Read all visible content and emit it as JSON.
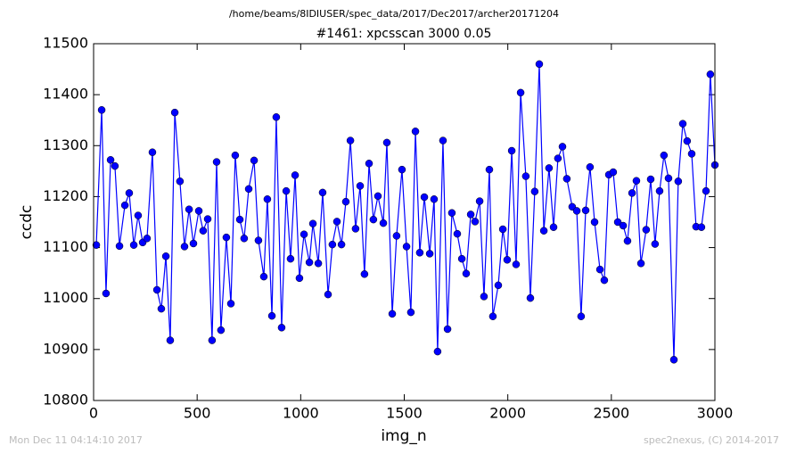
{
  "chart_data": {
    "type": "line",
    "suptitle": "/home/beams/8IDIUSER/spec_data/2017/Dec2017/archer20171204",
    "title": "#1461: xpcsscan 3000 0.05",
    "xlabel": "img_n",
    "ylabel": "ccdc",
    "footer_left": "Mon Dec 11 04:14:10 2017",
    "footer_right": "spec2nexus, (C) 2014-2017",
    "xlim": [
      0,
      3000
    ],
    "xticks": [
      0,
      500,
      1000,
      1500,
      2000,
      2500,
      3000
    ],
    "ylim": [
      10800,
      11500
    ],
    "yticks": [
      10800,
      10900,
      11000,
      11100,
      11200,
      11300,
      11400,
      11500
    ],
    "x": [
      13,
      39,
      60,
      82,
      103,
      125,
      151,
      172,
      194,
      215,
      237,
      258,
      284,
      306,
      327,
      349,
      370,
      392,
      417,
      439,
      461,
      482,
      508,
      529,
      551,
      572,
      594,
      615,
      641,
      663,
      684,
      706,
      727,
      749,
      775,
      796,
      822,
      839,
      861,
      882,
      908,
      930,
      951,
      973,
      994,
      1016,
      1042,
      1059,
      1085,
      1106,
      1132,
      1153,
      1175,
      1197,
      1218,
      1240,
      1265,
      1287,
      1308,
      1330,
      1351,
      1373,
      1399,
      1416,
      1442,
      1463,
      1489,
      1511,
      1532,
      1554,
      1575,
      1597,
      1623,
      1644,
      1661,
      1687,
      1709,
      1730,
      1756,
      1778,
      1799,
      1821,
      1842,
      1864,
      1885,
      1911,
      1928,
      1954,
      1976,
      1997,
      2019,
      2040,
      2062,
      2087,
      2109,
      2130,
      2152,
      2174,
      2199,
      2221,
      2242,
      2264,
      2285,
      2311,
      2333,
      2354,
      2376,
      2397,
      2419,
      2445,
      2466,
      2488,
      2509,
      2531,
      2557,
      2578,
      2600,
      2621,
      2643,
      2668,
      2690,
      2711,
      2733,
      2754,
      2776,
      2802,
      2823,
      2845,
      2866,
      2888,
      2909,
      2935,
      2957,
      2978,
      3000
    ],
    "series": [
      {
        "color": "#0000ff",
        "values": [
          11105,
          11370,
          11010,
          11272,
          11260,
          11103,
          11183,
          11207,
          11105,
          11163,
          11110,
          11118,
          11287,
          11017,
          10980,
          11083,
          10918,
          11365,
          11230,
          11102,
          11175,
          11108,
          11172,
          11133,
          11156,
          10918,
          11268,
          10938,
          11120,
          10990,
          11281,
          11155,
          11118,
          11215,
          11271,
          11114,
          11043,
          11195,
          10966,
          11356,
          10943,
          11211,
          11078,
          11242,
          11040,
          11126,
          11071,
          11147,
          11069,
          11208,
          11008,
          11106,
          11151,
          11106,
          11190,
          11310,
          11137,
          11221,
          11048,
          11265,
          11155,
          11201,
          11148,
          11306,
          10970,
          11123,
          11253,
          11102,
          10973,
          11328,
          11090,
          11199,
          11088,
          11195,
          10896,
          11310,
          10940,
          11168,
          11127,
          11078,
          11049,
          11165,
          11151,
          11191,
          11004,
          11253,
          10965,
          11026,
          11136,
          11076,
          11290,
          11067,
          11404,
          11240,
          11001,
          11210,
          11460,
          11133,
          11256,
          11140,
          11275,
          11298,
          11235,
          11180,
          11172,
          10965,
          11173,
          11258,
          11150,
          11057,
          11036,
          11243,
          11248,
          11150,
          11143,
          11113,
          11207,
          11231,
          11069,
          11135,
          11234,
          11107,
          11211,
          11281,
          11236,
          10880,
          11230,
          11343,
          11309,
          11284,
          11141,
          11140,
          11211,
          11440,
          11262
        ]
      }
    ]
  }
}
